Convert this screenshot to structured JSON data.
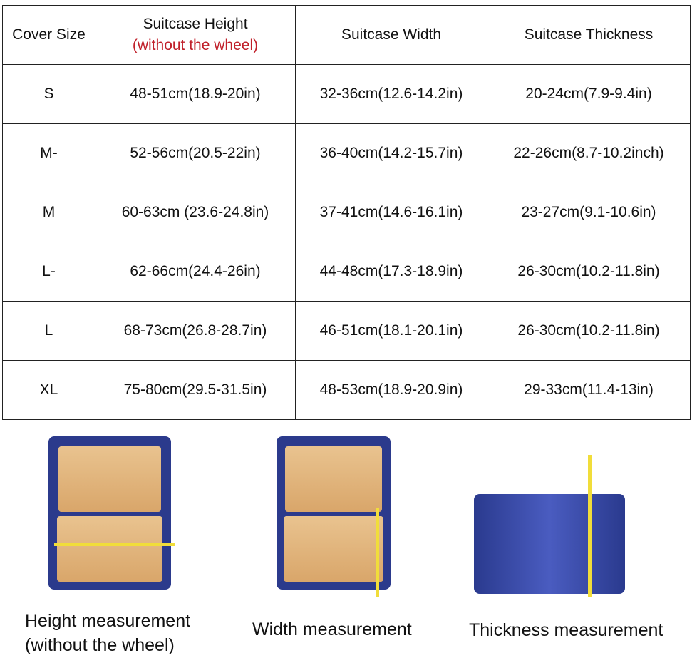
{
  "table": {
    "headers": [
      "Cover Size",
      "Suitcase Height",
      "(without the wheel)",
      "Suitcase Width",
      "Suitcase Thickness"
    ],
    "rows": [
      [
        "S",
        "48-51cm(18.9-20in)",
        "32-36cm(12.6-14.2in)",
        "20-24cm(7.9-9.4in)"
      ],
      [
        "M-",
        "52-56cm(20.5-22in)",
        "36-40cm(14.2-15.7in)",
        "22-26cm(8.7-10.2inch)"
      ],
      [
        "M",
        "60-63cm (23.6-24.8in)",
        "37-41cm(14.6-16.1in)",
        "23-27cm(9.1-10.6in)"
      ],
      [
        "L-",
        "62-66cm(24.4-26in)",
        "44-48cm(17.3-18.9in)",
        "26-30cm(10.2-11.8in)"
      ],
      [
        "L",
        "68-73cm(26.8-28.7in)",
        "46-51cm(18.1-20.1in)",
        "26-30cm(10.2-11.8in)"
      ],
      [
        "XL",
        "75-80cm(29.5-31.5in)",
        "48-53cm(18.9-20.9in)",
        "29-33cm(11.4-13in)"
      ]
    ]
  },
  "photos": {
    "height_label": "Height measurement",
    "height_note": "(without the wheel)",
    "width_label": "Width measurement",
    "thickness_label": "Thickness measurement"
  },
  "colors": {
    "accent_red": "#c0202a",
    "suitcase_blue": "#2b3a8c",
    "tape_yellow": "#f1dd3a"
  }
}
